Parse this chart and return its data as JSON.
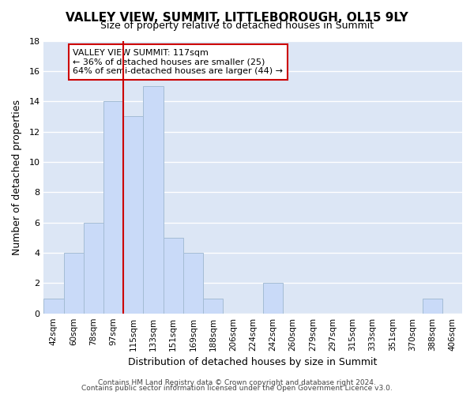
{
  "title": "VALLEY VIEW, SUMMIT, LITTLEBOROUGH, OL15 9LY",
  "subtitle": "Size of property relative to detached houses in Summit",
  "xlabel": "Distribution of detached houses by size in Summit",
  "ylabel": "Number of detached properties",
  "bar_color": "#c9daf8",
  "bar_edge_color": "#a4bcd4",
  "background_color": "#ffffff",
  "grid_color": "#ffffff",
  "plot_bg_color": "#dce6f5",
  "bin_labels": [
    "42sqm",
    "60sqm",
    "78sqm",
    "97sqm",
    "115sqm",
    "133sqm",
    "151sqm",
    "169sqm",
    "188sqm",
    "206sqm",
    "224sqm",
    "242sqm",
    "260sqm",
    "279sqm",
    "297sqm",
    "315sqm",
    "333sqm",
    "351sqm",
    "370sqm",
    "388sqm",
    "406sqm"
  ],
  "counts": [
    1,
    4,
    6,
    14,
    13,
    15,
    5,
    4,
    1,
    0,
    0,
    2,
    0,
    0,
    0,
    0,
    0,
    0,
    0,
    1,
    0
  ],
  "ylim": [
    0,
    18
  ],
  "yticks": [
    0,
    2,
    4,
    6,
    8,
    10,
    12,
    14,
    16,
    18
  ],
  "vline_x_index": 4,
  "vline_color": "#cc0000",
  "annotation_title": "VALLEY VIEW SUMMIT: 117sqm",
  "annotation_line1": "← 36% of detached houses are smaller (25)",
  "annotation_line2": "64% of semi-detached houses are larger (44) →",
  "annotation_box_color": "#ffffff",
  "annotation_box_edge": "#cc0000",
  "footer1": "Contains HM Land Registry data © Crown copyright and database right 2024.",
  "footer2": "Contains public sector information licensed under the Open Government Licence v3.0."
}
